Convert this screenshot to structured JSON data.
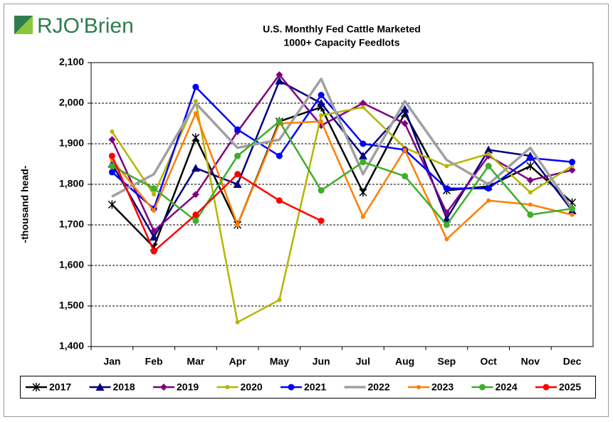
{
  "logo": "RJO'Brien",
  "chart_data": {
    "type": "line",
    "title": "U.S. Monthly Fed Cattle Marketed",
    "subtitle": "1000+ Capacity Feedlots",
    "y_label": "-thousand head-",
    "categories": [
      "Jan",
      "Feb",
      "Mar",
      "Apr",
      "May",
      "Jun",
      "Jul",
      "Aug",
      "Sep",
      "Oct",
      "Nov",
      "Dec"
    ],
    "ylim": [
      1400,
      2100
    ],
    "yticks": [
      {
        "value": 1400,
        "label": "1,400"
      },
      {
        "value": 1500,
        "label": "1,500"
      },
      {
        "value": 1600,
        "label": "1,600"
      },
      {
        "value": 1700,
        "label": "1,700"
      },
      {
        "value": 1800,
        "label": "1,800"
      },
      {
        "value": 1900,
        "label": "1,900"
      },
      {
        "value": 2000,
        "label": "2,000"
      },
      {
        "value": 2100,
        "label": "2,100"
      }
    ],
    "grid": true,
    "legend": "bottom",
    "series": [
      {
        "name": "2017",
        "color": "#000000",
        "marker": "star",
        "values": [
          1750,
          1645,
          1915,
          1700,
          1955,
          1990,
          1780,
          1975,
          1785,
          1795,
          1845,
          1755
        ]
      },
      {
        "name": "2018",
        "color": "#000080",
        "marker": "triangle",
        "values": [
          1850,
          1670,
          1840,
          1800,
          2055,
          2000,
          1870,
          1985,
          1715,
          1885,
          1870,
          1735
        ]
      },
      {
        "name": "2019",
        "color": "#800080",
        "marker": "diamond",
        "values": [
          1910,
          1685,
          1775,
          1930,
          2070,
          1945,
          2000,
          1950,
          1730,
          1870,
          1810,
          1835
        ]
      },
      {
        "name": "2020",
        "color": "#b5b500",
        "marker": "dot",
        "values": [
          1930,
          1775,
          2005,
          1460,
          1515,
          1970,
          1990,
          1890,
          1845,
          1875,
          1780,
          1845
        ]
      },
      {
        "name": "2021",
        "color": "#0000ff",
        "marker": "circle",
        "values": [
          1830,
          1740,
          2040,
          1935,
          1870,
          2020,
          1900,
          1885,
          1790,
          1790,
          1865,
          1855
        ]
      },
      {
        "name": "2022",
        "color": "#a0a0a0",
        "marker": "none",
        "values": [
          1770,
          1825,
          2000,
          1890,
          1910,
          2060,
          1825,
          2005,
          1860,
          1800,
          1890,
          1740
        ]
      },
      {
        "name": "2023",
        "color": "#ff7f00",
        "marker": "dot",
        "values": [
          1860,
          1735,
          1975,
          1700,
          1950,
          1955,
          1720,
          1885,
          1665,
          1760,
          1750,
          1725
        ]
      },
      {
        "name": "2024",
        "color": "#3fae2a",
        "marker": "circle",
        "values": [
          1845,
          1790,
          1710,
          1870,
          1955,
          1785,
          1855,
          1820,
          1700,
          1845,
          1725,
          1740
        ]
      },
      {
        "name": "2025",
        "color": "#ff0000",
        "marker": "circle",
        "values": [
          1870,
          1635,
          1725,
          1825,
          1760,
          1710,
          null,
          null,
          null,
          null,
          null,
          null
        ]
      }
    ]
  }
}
